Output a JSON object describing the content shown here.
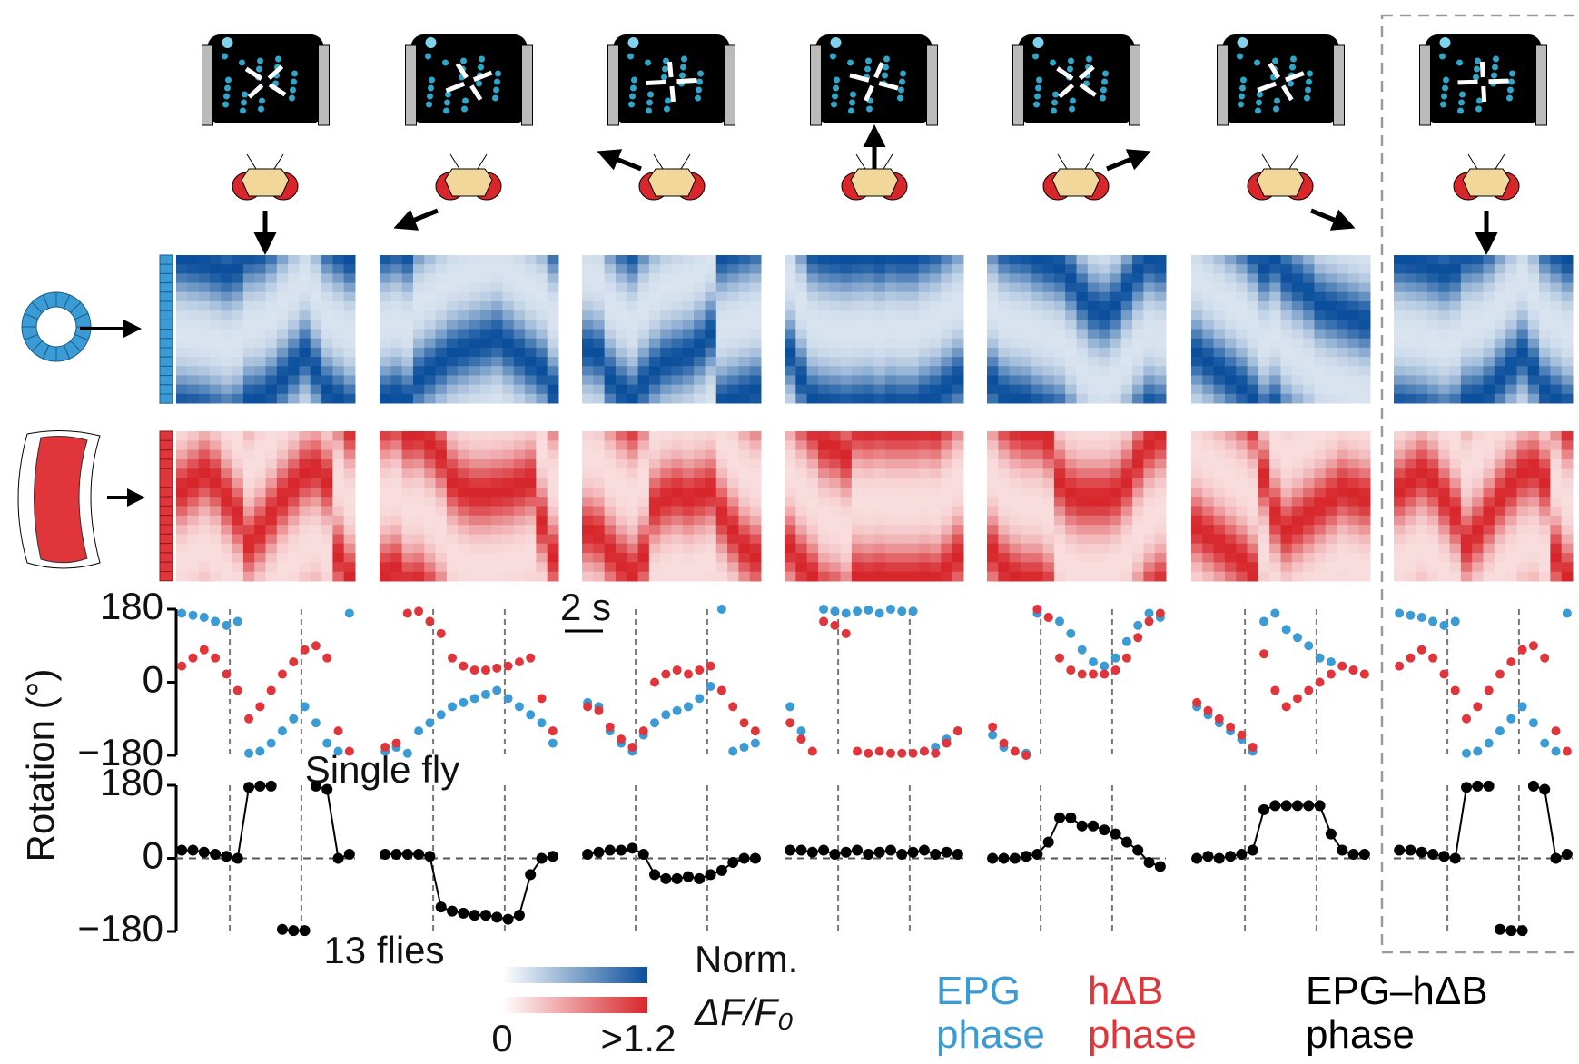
{
  "chart_data": [
    {
      "type": "scatter",
      "y_label": "Rotation (°)",
      "ylim": [
        -180,
        180
      ],
      "yticks": [
        {
          "value": -180,
          "label": "−180"
        },
        0,
        180
      ],
      "scale_bar": "2 s",
      "series": [
        {
          "name": "EPG phase",
          "color": "#3a9bd5",
          "values": [
            [
              170,
              165,
              160,
              150,
              140,
              150,
              -175,
              -170,
              -150,
              -120,
              -90,
              -60,
              -100,
              -150,
              -170,
              170
            ],
            [
              -170,
              -160,
              -175,
              -120,
              -100,
              -80,
              -60,
              -50,
              -40,
              -30,
              -20,
              -40,
              -60,
              -80,
              -100,
              -150
            ],
            [
              -50,
              -60,
              -120,
              -150,
              -170,
              -130,
              -100,
              -80,
              -70,
              -60,
              -40,
              -10,
              180,
              -170,
              -160,
              -150
            ],
            [
              -60,
              -120,
              -170,
              180,
              175,
              170,
              175,
              178,
              170,
              180,
              175,
              175,
              -170,
              -160,
              -140,
              -120
            ],
            [
              -130,
              -160,
              -170,
              -175,
              170,
              160,
              150,
              120,
              80,
              50,
              40,
              60,
              100,
              140,
              170,
              160
            ],
            [
              -60,
              -80,
              -100,
              -120,
              -140,
              -170,
              150,
              170,
              130,
              110,
              90,
              60,
              50,
              40,
              30,
              20
            ],
            [
              170,
              165,
              160,
              150,
              140,
              150,
              -175,
              -170,
              -150,
              -120,
              -90,
              -60,
              -100,
              -150,
              -170,
              170
            ]
          ]
        },
        {
          "name": "hΔB phase",
          "color": "#e0353a",
          "values": [
            [
              40,
              60,
              80,
              60,
              20,
              -20,
              -90,
              -60,
              -20,
              20,
              50,
              80,
              90,
              60,
              -120,
              -170
            ],
            [
              -160,
              -150,
              170,
              175,
              150,
              120,
              60,
              40,
              30,
              30,
              35,
              40,
              50,
              60,
              -40,
              -120
            ],
            [
              -60,
              -70,
              -110,
              -140,
              -160,
              -120,
              0,
              20,
              30,
              20,
              30,
              40,
              -20,
              -60,
              -100,
              -120
            ],
            [
              -100,
              -140,
              -170,
              150,
              140,
              120,
              -170,
              -175,
              -170,
              -175,
              -175,
              -175,
              -170,
              -175,
              -150,
              -120
            ],
            [
              -110,
              -150,
              -170,
              -180,
              180,
              160,
              60,
              30,
              20,
              20,
              20,
              30,
              60,
              110,
              150,
              170
            ],
            [
              -50,
              -70,
              -90,
              -110,
              -130,
              -160,
              70,
              -20,
              -60,
              -40,
              -20,
              0,
              20,
              40,
              30,
              20
            ],
            [
              40,
              60,
              80,
              60,
              20,
              -20,
              -90,
              -60,
              -20,
              20,
              50,
              80,
              90,
              60,
              -120,
              -170
            ]
          ]
        }
      ]
    },
    {
      "type": "line",
      "ylim": [
        -180,
        180
      ],
      "yticks": [
        {
          "value": -180,
          "label": "−180"
        },
        0,
        180
      ],
      "annotations": [
        "Single fly",
        "13 flies"
      ],
      "series": [
        {
          "name": "EPG–hΔB phase",
          "color": "#000000",
          "values": [
            [
              20,
              20,
              15,
              10,
              5,
              0,
              175,
              178,
              178,
              -175,
              -178,
              -178,
              178,
              170,
              0,
              10
            ],
            [
              10,
              10,
              10,
              10,
              5,
              -120,
              -130,
              -135,
              -140,
              -140,
              -145,
              -150,
              -140,
              -40,
              0,
              5
            ],
            [
              10,
              15,
              20,
              20,
              25,
              10,
              -40,
              -50,
              -50,
              -45,
              -50,
              -40,
              -30,
              -10,
              0,
              0
            ],
            [
              20,
              20,
              15,
              20,
              10,
              15,
              20,
              10,
              15,
              20,
              10,
              15,
              20,
              10,
              15,
              10
            ],
            [
              0,
              0,
              0,
              5,
              10,
              40,
              100,
              100,
              80,
              80,
              70,
              60,
              40,
              20,
              -10,
              -20
            ],
            [
              0,
              5,
              0,
              5,
              10,
              20,
              120,
              130,
              130,
              130,
              130,
              130,
              60,
              20,
              10,
              10
            ],
            [
              20,
              20,
              15,
              10,
              5,
              0,
              175,
              178,
              178,
              -175,
              -178,
              -178,
              178,
              170,
              0,
              10
            ]
          ]
        }
      ]
    }
  ],
  "colorbar": {
    "label": [
      "Norm.",
      "ΔF/F₀"
    ],
    "ticks": [
      0,
      {
        "value": 1.2,
        "label": ">1.2"
      }
    ],
    "colors": [
      "#0b4f9c",
      "#d7262b"
    ]
  }
}
